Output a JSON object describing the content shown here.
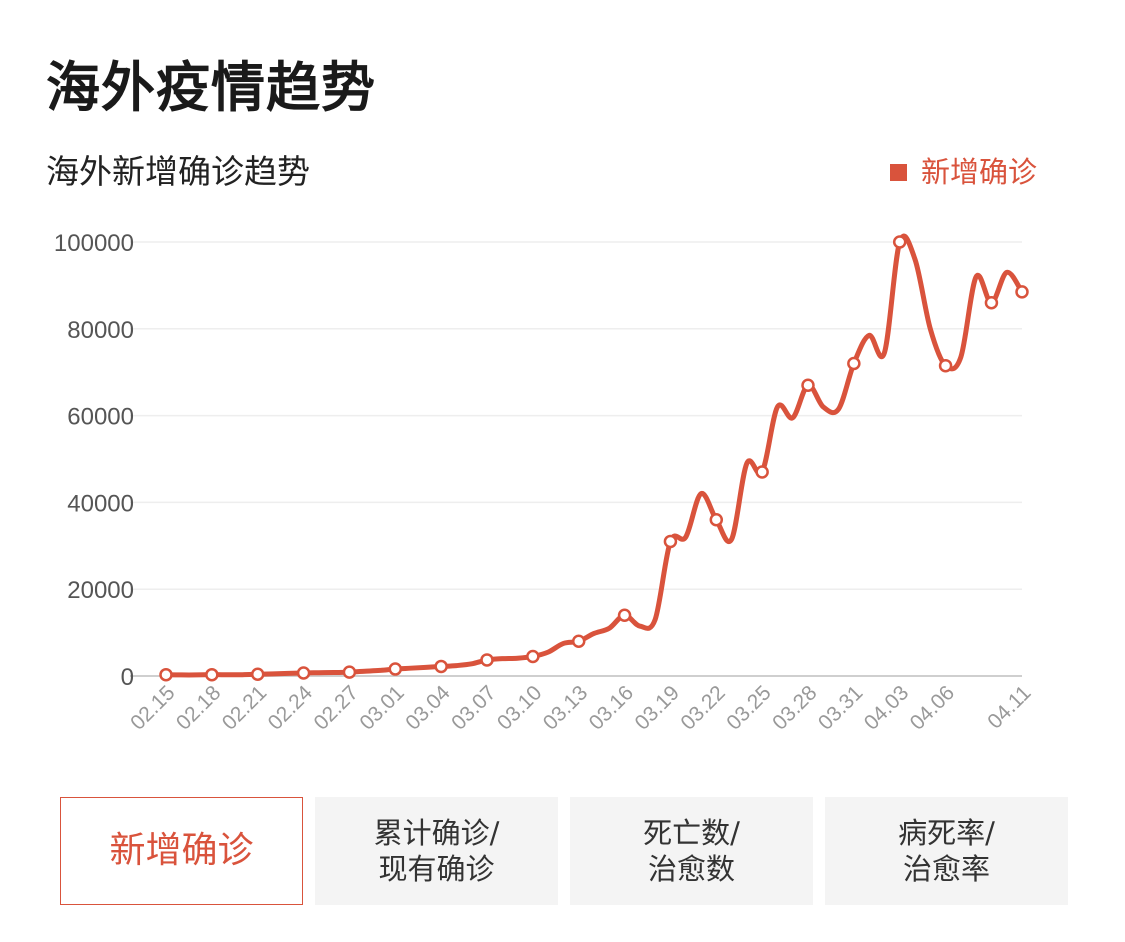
{
  "page": {
    "title": "海外疫情趋势"
  },
  "chart_data": {
    "type": "line",
    "title": "海外新增确诊趋势",
    "legend": {
      "label": "新增确诊",
      "position": "top-right"
    },
    "color": "#d9533c",
    "grid": true,
    "ylim": [
      0,
      100000
    ],
    "yticks": [
      "0",
      "20000",
      "40000",
      "60000",
      "80000",
      "100000"
    ],
    "xticks": [
      "02.15",
      "02.18",
      "02.21",
      "02.24",
      "02.27",
      "03.01",
      "03.04",
      "03.07",
      "03.10",
      "03.13",
      "03.16",
      "03.19",
      "03.22",
      "03.25",
      "03.28",
      "03.31",
      "04.03",
      "04.06",
      "04.11"
    ],
    "x": [
      "02.15",
      "02.16",
      "02.17",
      "02.18",
      "02.19",
      "02.20",
      "02.21",
      "02.22",
      "02.23",
      "02.24",
      "02.25",
      "02.26",
      "02.27",
      "02.28",
      "02.29",
      "03.01",
      "03.02",
      "03.03",
      "03.04",
      "03.05",
      "03.06",
      "03.07",
      "03.08",
      "03.09",
      "03.10",
      "03.11",
      "03.12",
      "03.13",
      "03.14",
      "03.15",
      "03.16",
      "03.17",
      "03.18",
      "03.19",
      "03.20",
      "03.21",
      "03.22",
      "03.23",
      "03.24",
      "03.25",
      "03.26",
      "03.27",
      "03.28",
      "03.29",
      "03.30",
      "03.31",
      "04.01",
      "04.02",
      "04.03",
      "04.04",
      "04.05",
      "04.06",
      "04.07",
      "04.08",
      "04.09",
      "04.10",
      "04.11"
    ],
    "series": [
      {
        "name": "新增确诊",
        "values": [
          300,
          250,
          250,
          300,
          300,
          300,
          400,
          500,
          600,
          700,
          750,
          800,
          900,
          1100,
          1300,
          1600,
          1800,
          2000,
          2200,
          2400,
          2800,
          3700,
          4000,
          4100,
          4500,
          5500,
          7500,
          8000,
          9800,
          11000,
          14000,
          11500,
          13000,
          31000,
          32000,
          42000,
          36000,
          31500,
          49000,
          47000,
          62000,
          59500,
          67000,
          62000,
          61500,
          72000,
          78500,
          74500,
          100000,
          96000,
          80000,
          71500,
          73500,
          92000,
          86000,
          93000,
          88500
        ]
      }
    ],
    "markers": [
      0,
      3,
      6,
      9,
      12,
      15,
      18,
      21,
      24,
      27,
      30,
      33,
      36,
      39,
      42,
      45,
      48,
      51,
      54,
      56
    ]
  },
  "tabs": [
    {
      "line1": "新增确诊",
      "line2": "",
      "active": true
    },
    {
      "line1": "累计确诊/",
      "line2": "现有确诊",
      "active": false
    },
    {
      "line1": "死亡数/",
      "line2": "治愈数",
      "active": false
    },
    {
      "line1": "病死率/",
      "line2": "治愈率",
      "active": false
    }
  ]
}
